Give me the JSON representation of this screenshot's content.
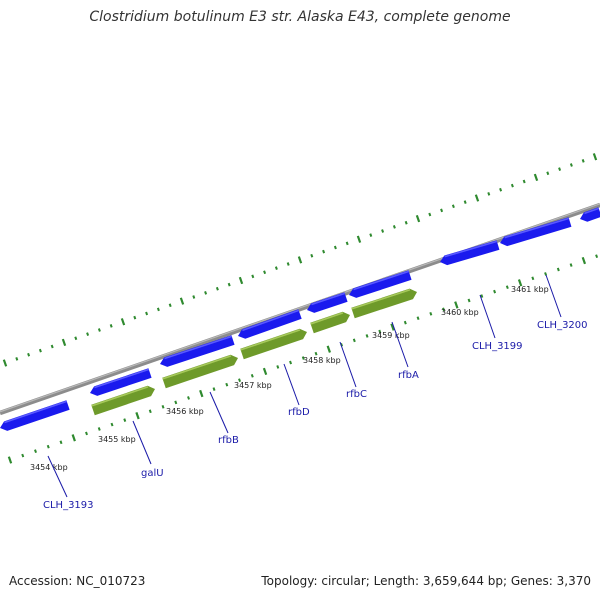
{
  "title": "Clostridium botulinum E3 str. Alaska E43, complete genome",
  "footer": {
    "accession": "Accession: NC_010723",
    "summary": "Topology: circular; Length: 3,659,644 bp; Genes: 3,370"
  },
  "colors": {
    "backbone": "#8c8c8c",
    "cds": "#1a1aee",
    "cds_light": "#5a5aff",
    "gene": "#6e9a2a",
    "gene_light": "#a6c85a",
    "tick": "#2f8a2f",
    "label": "#1a1aa8"
  },
  "kbp_ticks": [
    {
      "label": "3454 kbp"
    },
    {
      "label": "3455 kbp"
    },
    {
      "label": "3456 kbp"
    },
    {
      "label": "3457 kbp"
    },
    {
      "label": "3458 kbp"
    },
    {
      "label": "3459 kbp"
    },
    {
      "label": "3460 kbp"
    },
    {
      "label": "3461 kbp"
    }
  ],
  "gene_labels": [
    {
      "name": "CLH_3193"
    },
    {
      "name": "galU"
    },
    {
      "name": "rfbB"
    },
    {
      "name": "rfbD"
    },
    {
      "name": "rfbC"
    },
    {
      "name": "rfbA"
    },
    {
      "name": "CLH_3199"
    },
    {
      "name": "CLH_3200"
    }
  ]
}
